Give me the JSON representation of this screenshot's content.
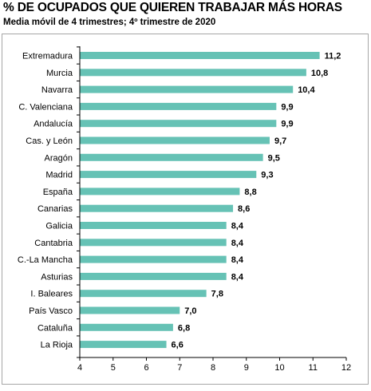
{
  "title": "% DE OCUPADOS QUE QUIEREN TRABAJAR MÁS HORAS",
  "subtitle": "Media móvil de 4 trimestres; 4º trimestre de 2020",
  "colors": {
    "bar": "#66c2b5",
    "axis": "#000000",
    "frame": "#a6a6a6"
  },
  "chart_data": {
    "type": "bar",
    "orientation": "horizontal",
    "title": "% DE OCUPADOS QUE QUIEREN TRABAJAR MÁS HORAS",
    "subtitle": "Media móvil de 4 trimestres; 4º trimestre de 2020",
    "xlabel": "",
    "ylabel": "",
    "xlim": [
      4,
      12
    ],
    "ticks": [
      "4",
      "5",
      "6",
      "7",
      "8",
      "9",
      "10",
      "11",
      "12"
    ],
    "grid": false,
    "categories": [
      "Extremadura",
      "Murcia",
      "Navarra",
      "C. Valenciana",
      "Andalucía",
      "Cas. y León",
      "Aragón",
      "Madrid",
      "España",
      "Canarias",
      "Galicia",
      "Cantabria",
      "C.-La Mancha",
      "Asturias",
      "I. Baleares",
      "País Vasco",
      "Cataluña",
      "La Rioja"
    ],
    "values": [
      11.2,
      10.8,
      10.4,
      9.9,
      9.9,
      9.7,
      9.5,
      9.3,
      8.8,
      8.6,
      8.4,
      8.4,
      8.4,
      8.4,
      7.8,
      7.0,
      6.8,
      6.6
    ],
    "value_labels": [
      "11,2",
      "10,8",
      "10,4",
      "9,9",
      "9,9",
      "9,7",
      "9,5",
      "9,3",
      "8,8",
      "8,6",
      "8,4",
      "8,4",
      "8,4",
      "8,4",
      "7,8",
      "7,0",
      "6,8",
      "6,6"
    ]
  }
}
